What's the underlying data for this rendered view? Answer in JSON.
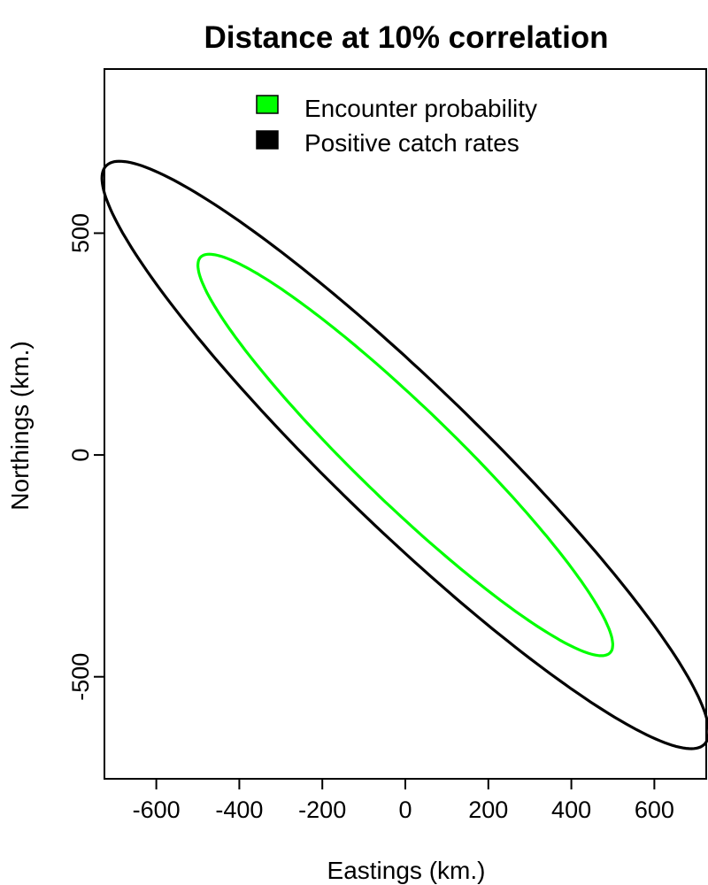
{
  "chart_data": {
    "type": "line",
    "title": "Distance at 10% correlation",
    "xlabel": "Eastings (km.)",
    "ylabel": "Northings (km.)",
    "xlim": [
      -725,
      725
    ],
    "ylim": [
      -730,
      870
    ],
    "xticks": [
      -600,
      -400,
      -200,
      0,
      200,
      400,
      600
    ],
    "yticks": [
      -500,
      0,
      500
    ],
    "legend": {
      "position": "top-center",
      "style": "filled-box"
    },
    "series": [
      {
        "name": "Encounter probability",
        "color": "#00ff00",
        "shape": "ellipse",
        "center": [
          0,
          0
        ],
        "semi_major": 665,
        "semi_minor": 111,
        "angle_deg": -42
      },
      {
        "name": "Positive catch rates",
        "color": "#000000",
        "shape": "ellipse",
        "center": [
          0,
          0
        ],
        "semi_major": 972,
        "semi_minor": 167,
        "angle_deg": -42
      }
    ]
  }
}
